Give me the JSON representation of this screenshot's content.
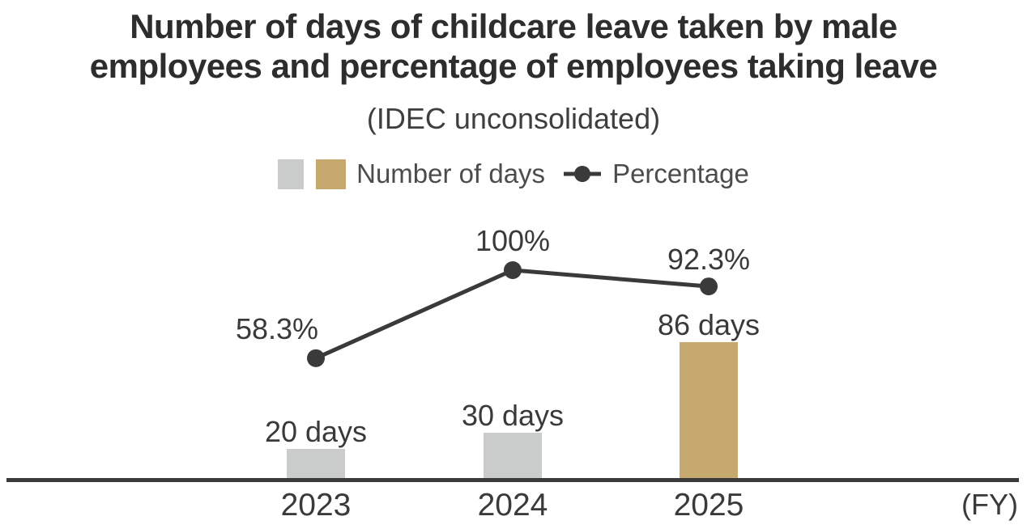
{
  "header": {
    "title_line1": "Number of days of childcare leave taken by male",
    "title_line2": "employees and percentage of employees taking leave",
    "subtitle": "(IDEC unconsolidated)"
  },
  "legend": {
    "days_label": "Number of days",
    "percentage_label": "Percentage"
  },
  "colors": {
    "bar_gray": "#cacccb",
    "bar_gold": "#c5a96e",
    "line": "#3a3a3a",
    "axis": "#3a3a3a",
    "label_text": "#3a3a3a",
    "tick_text": "#3a3a3a"
  },
  "chart_data": {
    "type": "combo",
    "categories": [
      "2023",
      "2024",
      "2025"
    ],
    "x_axis_note": "(FY)",
    "series": [
      {
        "name": "Number of days",
        "type": "bar",
        "values": [
          20,
          30,
          86
        ],
        "labels": [
          "20 days",
          "30 days",
          "86 days"
        ],
        "bar_colors": [
          "#cacccb",
          "#cacccb",
          "#c5a96e"
        ]
      },
      {
        "name": "Percentage",
        "type": "line",
        "values": [
          58.3,
          100,
          92.3
        ],
        "labels": [
          "58.3%",
          "100%",
          "92.3%"
        ]
      }
    ],
    "ylim_days": [
      0,
      100
    ],
    "ylim_percent": [
      0,
      110
    ],
    "grid": false,
    "legend_position": "top-center",
    "data_labels_shown": true
  }
}
